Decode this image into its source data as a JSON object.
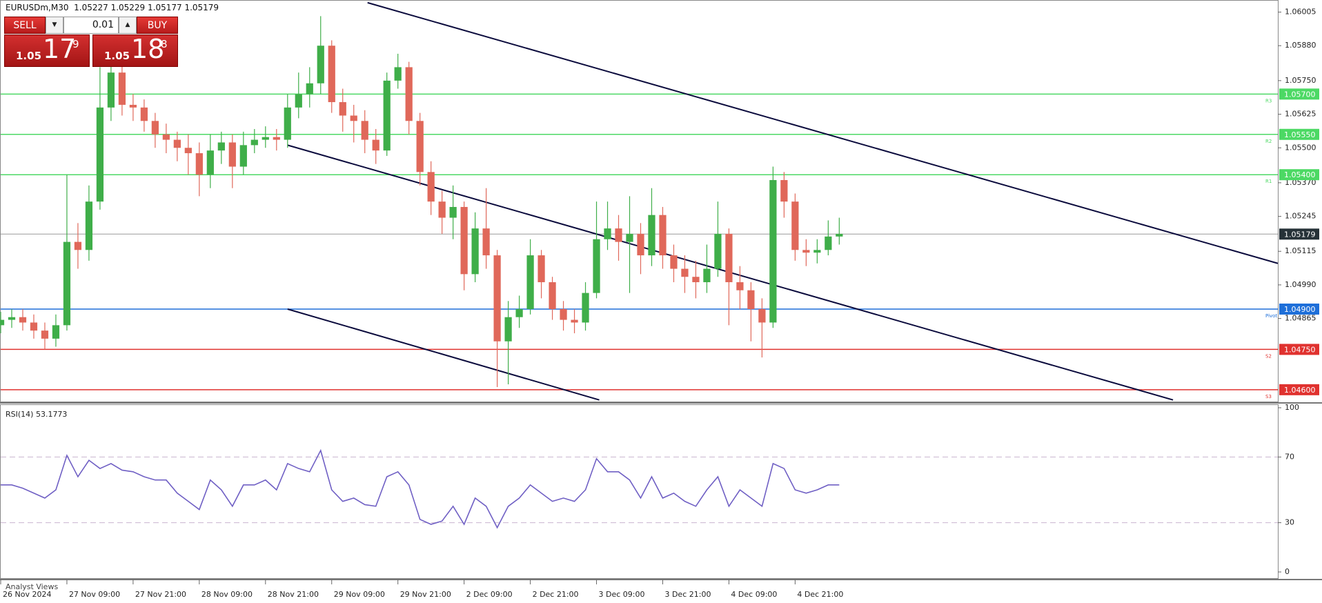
{
  "header": {
    "symbol": "EURUSDm,M30",
    "ohlc": "1.05227 1.05229 1.05177 1.05179"
  },
  "trade_panel": {
    "sell": "SELL",
    "buy": "BUY",
    "lot": "0.01",
    "bid": {
      "big": "1.05",
      "main": "17",
      "pip": "9"
    },
    "ask": {
      "big": "1.05",
      "main": "18",
      "pip": "8"
    }
  },
  "footer": {
    "tab": "Analyst Views"
  },
  "chart_data": [
    {
      "type": "candlestick",
      "up_color": "#3fae49",
      "down_color": "#e0685a",
      "xlim": [
        0,
        463
      ],
      "ylim": [
        1.04556,
        1.0605
      ],
      "xticks": [
        {
          "value": 0,
          "label": "26 Nov 2024"
        },
        {
          "value": 24,
          "label": "27 Nov 09:00"
        },
        {
          "value": 48,
          "label": "27 Nov 21:00"
        },
        {
          "value": 72,
          "label": "28 Nov 09:00"
        },
        {
          "value": 96,
          "label": "28 Nov 21:00"
        },
        {
          "value": 120,
          "label": "29 Nov 09:00"
        },
        {
          "value": 144,
          "label": "29 Nov 21:00"
        },
        {
          "value": 168,
          "label": "2 Dec 09:00"
        },
        {
          "value": 192,
          "label": "2 Dec 21:00"
        },
        {
          "value": 216,
          "label": "3 Dec 09:00"
        },
        {
          "value": 240,
          "label": "3 Dec 21:00"
        },
        {
          "value": 264,
          "label": "4 Dec 09:00"
        },
        {
          "value": 288,
          "label": "4 Dec 21:00"
        }
      ],
      "yticks": [
        1.06005,
        {
          "value": 1.0588,
          "label": "1.05880"
        },
        {
          "value": 1.0575,
          "label": "1.05750"
        },
        1.05625,
        {
          "value": 1.055,
          "label": "1.05500"
        },
        {
          "value": 1.0537,
          "label": "1.05370"
        },
        1.05245,
        1.05115,
        {
          "value": 1.0499,
          "label": "1.04990"
        },
        1.04865
      ],
      "levels": [
        {
          "value": 1.057,
          "label": "1.05700",
          "tag": "R3",
          "color": "#4cd964"
        },
        {
          "value": 1.0555,
          "label": "1.05550",
          "tag": "R2",
          "color": "#4cd964"
        },
        {
          "value": 1.054,
          "label": "1.05400",
          "tag": "R1",
          "color": "#4cd964"
        },
        {
          "value": 1.05179,
          "label": "1.05179",
          "color": "#263238"
        },
        {
          "value": 1.049,
          "label": "1.04900",
          "tag": "Pivot",
          "color": "#1e6fd9"
        },
        {
          "value": 1.0475,
          "label": "1.04750",
          "tag": "S2",
          "color": "#e0322f"
        },
        {
          "value": 1.046,
          "label": "1.04600",
          "tag": "S3",
          "color": "#e0322f"
        }
      ],
      "trendlines": [
        {
          "x": [
            133,
            463
          ],
          "y": [
            1.0604,
            1.0507
          ],
          "color": "#0a0a3c"
        },
        {
          "x": [
            104,
            425
          ],
          "y": [
            1.0551,
            1.04562
          ],
          "color": "#0a0a3c"
        },
        {
          "x": [
            104,
            217
          ],
          "y": [
            1.049,
            1.04562
          ],
          "color": "#0a0a3c"
        }
      ],
      "x": [
        0,
        4,
        8,
        12,
        16,
        20,
        24,
        28,
        32,
        36,
        40,
        44,
        48,
        52,
        56,
        60,
        64,
        68,
        72,
        76,
        80,
        84,
        88,
        92,
        96,
        100,
        104,
        108,
        112,
        116,
        120,
        124,
        128,
        132,
        136,
        140,
        144,
        148,
        152,
        156,
        160,
        164,
        168,
        172,
        176,
        180,
        184,
        188,
        192,
        196,
        200,
        204,
        208,
        212,
        216,
        220,
        224,
        228,
        232,
        236,
        240,
        244,
        248,
        252,
        256,
        260,
        264,
        268,
        272,
        276,
        280,
        284,
        288,
        292,
        296,
        300,
        304
      ],
      "open": [
        1.0484,
        1.0486,
        1.0487,
        1.0485,
        1.0482,
        1.0479,
        1.0484,
        1.0515,
        1.0512,
        1.053,
        1.0565,
        1.0578,
        1.0566,
        1.0565,
        1.056,
        1.0555,
        1.0553,
        1.055,
        1.0548,
        1.054,
        1.0549,
        1.0552,
        1.0543,
        1.0551,
        1.0553,
        1.0554,
        1.0553,
        1.0565,
        1.057,
        1.0574,
        1.0588,
        1.0567,
        1.0562,
        1.056,
        1.0553,
        1.0549,
        1.0575,
        1.058,
        1.056,
        1.0541,
        1.053,
        1.0524,
        1.0528,
        1.0503,
        1.052,
        1.051,
        1.0478,
        1.0487,
        1.049,
        1.051,
        1.05,
        1.049,
        1.0486,
        1.0485,
        1.0496,
        1.0516,
        1.052,
        1.0515,
        1.0518,
        1.051,
        1.0525,
        1.051,
        1.0505,
        1.0502,
        1.05,
        1.0505,
        1.0518,
        1.05,
        1.0497,
        1.049,
        1.0485,
        1.0538,
        1.053,
        1.0512,
        1.0511,
        1.0512,
        1.0517
      ],
      "high": [
        1.0489,
        1.049,
        1.049,
        1.0488,
        1.0485,
        1.0488,
        1.054,
        1.0522,
        1.0536,
        1.058,
        1.0585,
        1.0582,
        1.057,
        1.0568,
        1.0563,
        1.0559,
        1.0556,
        1.0555,
        1.0552,
        1.0555,
        1.0556,
        1.0555,
        1.0556,
        1.0557,
        1.0558,
        1.0557,
        1.057,
        1.0578,
        1.058,
        1.0599,
        1.059,
        1.0572,
        1.0566,
        1.0564,
        1.0557,
        1.0578,
        1.0585,
        1.0582,
        1.0563,
        1.0545,
        1.0534,
        1.0536,
        1.053,
        1.0526,
        1.0535,
        1.0512,
        1.0493,
        1.0495,
        1.0516,
        1.0512,
        1.0502,
        1.0493,
        1.049,
        1.05,
        1.053,
        1.053,
        1.0525,
        1.0532,
        1.0522,
        1.0535,
        1.0528,
        1.0514,
        1.051,
        1.0508,
        1.0514,
        1.053,
        1.052,
        1.0506,
        1.05,
        1.0494,
        1.0543,
        1.0541,
        1.0533,
        1.0516,
        1.0516,
        1.0523,
        1.0524
      ],
      "low": [
        1.0481,
        1.0483,
        1.0482,
        1.0479,
        1.0475,
        1.0476,
        1.0482,
        1.0505,
        1.0508,
        1.0527,
        1.056,
        1.0562,
        1.056,
        1.0556,
        1.055,
        1.0548,
        1.0545,
        1.054,
        1.0532,
        1.0535,
        1.0544,
        1.0535,
        1.054,
        1.0548,
        1.055,
        1.0549,
        1.055,
        1.0561,
        1.0565,
        1.057,
        1.0563,
        1.0556,
        1.0552,
        1.0548,
        1.0544,
        1.0547,
        1.0572,
        1.0555,
        1.0536,
        1.0525,
        1.0518,
        1.0516,
        1.0497,
        1.05,
        1.0505,
        1.0461,
        1.0462,
        1.0483,
        1.0488,
        1.0494,
        1.0486,
        1.0482,
        1.0481,
        1.0482,
        1.0494,
        1.0512,
        1.0508,
        1.0496,
        1.0503,
        1.0506,
        1.0505,
        1.05,
        1.0496,
        1.0494,
        1.0496,
        1.0502,
        1.0484,
        1.049,
        1.0478,
        1.0472,
        1.0483,
        1.0524,
        1.0508,
        1.0506,
        1.0507,
        1.051,
        1.0514
      ],
      "close": [
        1.0486,
        1.0487,
        1.0485,
        1.0482,
        1.0479,
        1.0484,
        1.0515,
        1.0512,
        1.053,
        1.0565,
        1.0578,
        1.0566,
        1.0565,
        1.056,
        1.0555,
        1.0553,
        1.055,
        1.0548,
        1.054,
        1.0549,
        1.0552,
        1.0543,
        1.0551,
        1.0553,
        1.0554,
        1.0553,
        1.0565,
        1.057,
        1.0574,
        1.0588,
        1.0567,
        1.0562,
        1.056,
        1.0553,
        1.0549,
        1.0575,
        1.058,
        1.056,
        1.0541,
        1.053,
        1.0524,
        1.0528,
        1.0503,
        1.052,
        1.051,
        1.0478,
        1.0487,
        1.049,
        1.051,
        1.05,
        1.049,
        1.0486,
        1.0485,
        1.0496,
        1.0516,
        1.052,
        1.0515,
        1.0518,
        1.051,
        1.0525,
        1.051,
        1.0505,
        1.0502,
        1.05,
        1.0505,
        1.0518,
        1.05,
        1.0497,
        1.049,
        1.0485,
        1.0538,
        1.053,
        1.0512,
        1.0511,
        1.0512,
        1.0517,
        1.0518
      ]
    },
    {
      "type": "line",
      "title": "RSI(14) 53.1773",
      "color": "#6f5fc4",
      "level_color": "#c9b3cf",
      "xlim": [
        0,
        463
      ],
      "ylim": [
        0,
        100
      ],
      "yticks": [
        0,
        30,
        70,
        100
      ],
      "levels": [
        30,
        70
      ],
      "x": [
        0,
        4,
        8,
        12,
        16,
        20,
        24,
        28,
        32,
        36,
        40,
        44,
        48,
        52,
        56,
        60,
        64,
        68,
        72,
        76,
        80,
        84,
        88,
        92,
        96,
        100,
        104,
        108,
        112,
        116,
        120,
        124,
        128,
        132,
        136,
        140,
        144,
        148,
        152,
        156,
        160,
        164,
        168,
        172,
        176,
        180,
        184,
        188,
        192,
        196,
        200,
        204,
        208,
        212,
        216,
        220,
        224,
        228,
        232,
        236,
        240,
        244,
        248,
        252,
        256,
        260,
        264,
        268,
        272,
        276,
        280,
        284,
        288,
        292,
        296,
        300,
        304
      ],
      "values": [
        53,
        53,
        51,
        48,
        45,
        50,
        71,
        58,
        68,
        63,
        66,
        62,
        61,
        58,
        56,
        56,
        48,
        43,
        38,
        56,
        50,
        40,
        53,
        53,
        56,
        50,
        66,
        63,
        61,
        74,
        50,
        43,
        45,
        41,
        40,
        58,
        61,
        53,
        32,
        29,
        31,
        40,
        29,
        45,
        40,
        27,
        40,
        45,
        53,
        48,
        43,
        45,
        43,
        50,
        69,
        61,
        61,
        56,
        45,
        58,
        45,
        48,
        43,
        40,
        50,
        58,
        40,
        50,
        45,
        40,
        66,
        63,
        50,
        48,
        50,
        53,
        53
      ]
    }
  ]
}
